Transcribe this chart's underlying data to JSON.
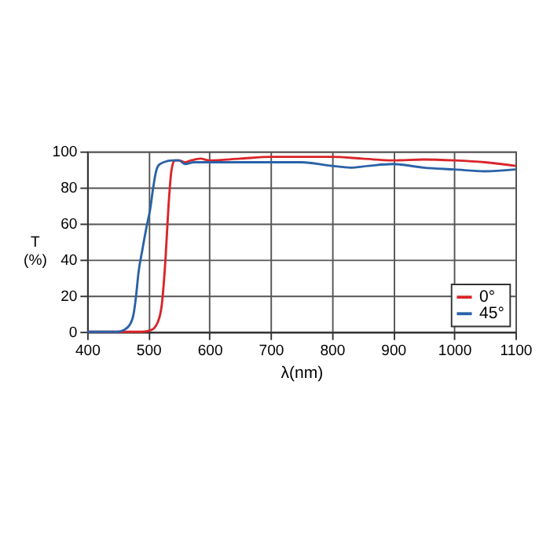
{
  "chart_data": {
    "type": "line",
    "xlabel": "λ(nm)",
    "ylabel": "T\n(%)",
    "xlim": [
      400,
      1100
    ],
    "ylim": [
      0,
      100
    ],
    "xticks": [
      400,
      500,
      600,
      700,
      800,
      900,
      1000,
      1100
    ],
    "yticks": [
      0,
      20,
      40,
      60,
      80,
      100
    ],
    "grid": true,
    "legend": "bottom right",
    "marker": "none",
    "line_style": "solid",
    "series": [
      {
        "name": "0°",
        "color": "#d9252b",
        "x": [
          400,
          490,
          505,
          515,
          522,
          528,
          533,
          538,
          543,
          550,
          560,
          570,
          585,
          600,
          650,
          700,
          750,
          800,
          850,
          900,
          950,
          1000,
          1050,
          1100
        ],
        "values": [
          0,
          0,
          1,
          5,
          15,
          40,
          70,
          90,
          95,
          95,
          94,
          95,
          96,
          95,
          96,
          97,
          97,
          97,
          96,
          95,
          95.5,
          95,
          94,
          92
        ]
      },
      {
        "name": "45°",
        "color": "#2a62a8",
        "x": [
          400,
          450,
          460,
          470,
          476,
          480,
          484,
          490,
          497,
          503,
          508,
          512,
          516,
          525,
          540,
          550,
          560,
          575,
          600,
          650,
          700,
          750,
          800,
          830,
          860,
          900,
          950,
          1000,
          1050,
          1100
        ],
        "values": [
          0,
          0,
          1,
          4,
          10,
          20,
          33,
          45,
          58,
          68,
          80,
          88,
          92,
          94,
          95,
          95,
          93,
          94,
          94,
          94,
          94,
          94,
          92,
          91,
          92,
          93,
          91,
          90,
          89,
          90
        ]
      }
    ]
  }
}
